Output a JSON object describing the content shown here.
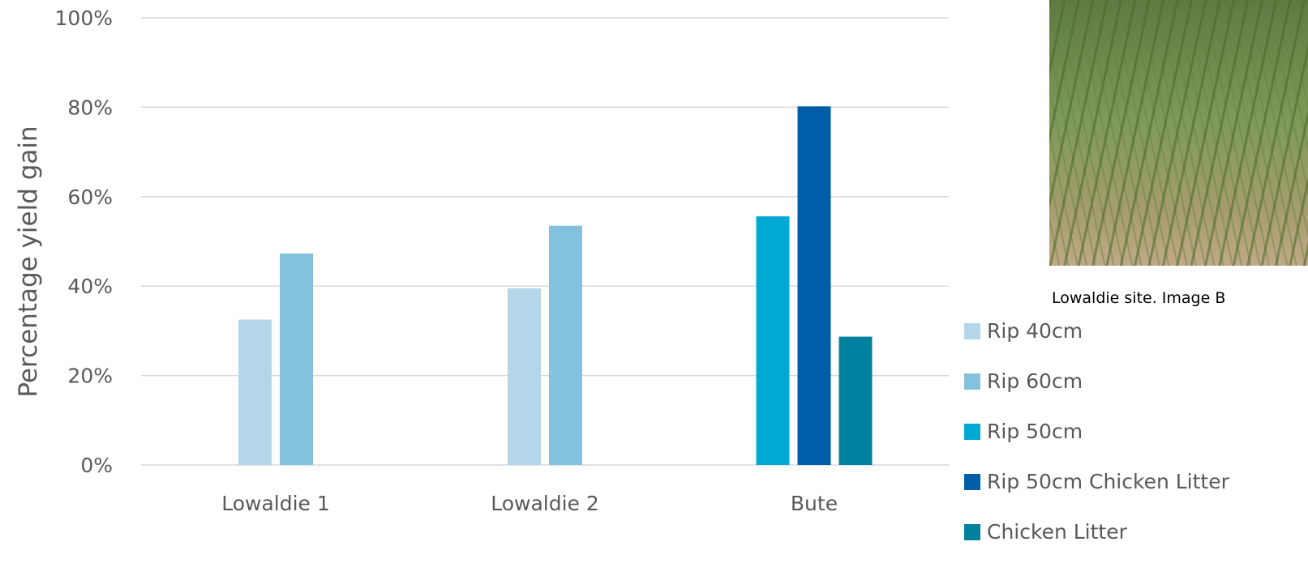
{
  "chart_data": {
    "type": "bar",
    "categories": [
      "Lowaldie 1",
      "Lowaldie 2",
      "Bute"
    ],
    "series": [
      {
        "name": "Rip 40cm",
        "color": "#b4d6e8",
        "values": [
          32.5,
          39.5,
          null
        ]
      },
      {
        "name": "Rip 60cm",
        "color": "#84c1dc",
        "values": [
          47.3,
          53.5,
          null
        ]
      },
      {
        "name": "Rip 50cm",
        "color": "#00a9d4",
        "values": [
          null,
          null,
          55.6
        ]
      },
      {
        "name": "Rip 50cm Chicken Litter",
        "color": "#005ea8",
        "values": [
          null,
          null,
          80.2
        ]
      },
      {
        "name": "Chicken Litter",
        "color": "#00809f",
        "values": [
          null,
          null,
          28.7
        ]
      }
    ],
    "ylabel": "Percentage yield gain",
    "yticks": [
      "0%",
      "20%",
      "40%",
      "60%",
      "80%",
      "100%"
    ],
    "ylim": [
      0,
      100
    ],
    "grid": true,
    "legend_position": "right"
  },
  "photo": {
    "caption": "Lowaldie site. Image B"
  }
}
